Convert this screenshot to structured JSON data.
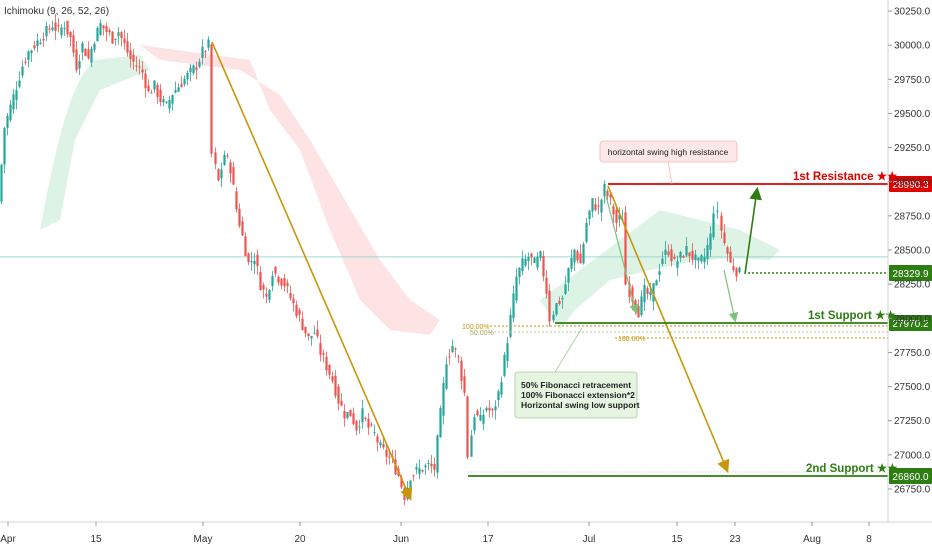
{
  "indicator": {
    "label": "Ichimoku (9, 26, 52, 26)"
  },
  "colors": {
    "up": "#26a69a",
    "down": "#ef5350",
    "resistance": "#e00000",
    "support": "#2e7d12",
    "current": "#26a69a",
    "arrow": "#c8960c",
    "cloud_bull": "#d9f2e3",
    "cloud_bear": "#fde0e0"
  },
  "chart_data": {
    "type": "candlestick",
    "ylim": [
      26600,
      30300
    ],
    "y_ticks": [
      "30250.0",
      "30000.0",
      "29750.0",
      "29500.0",
      "29250.0",
      "29000.0",
      "28750.0",
      "28500.0",
      "28250.0",
      "28000.0",
      "27750.0",
      "27500.0",
      "27250.0",
      "27000.0",
      "26750.0"
    ],
    "x_ticks": [
      "Apr",
      "15",
      "May",
      "20",
      "Jun",
      "17",
      "Jul",
      "15",
      "23",
      "Aug",
      "8"
    ],
    "levels": [
      {
        "name": "1st Resistance ★★",
        "value": "28990.3",
        "kind": "resistance"
      },
      {
        "name": "",
        "value": "28329.9",
        "kind": "current"
      },
      {
        "name": "1st Support ★★",
        "value": "27970.2",
        "kind": "support"
      },
      {
        "name": "2nd Support ★★",
        "value": "26860.0",
        "kind": "support"
      }
    ],
    "fib_labels": [
      "100.00%",
      "50.00%",
      "100.00%"
    ],
    "annotations": {
      "resistance_note": "horizontal swing high resistance",
      "support_note": [
        "50% Fibonacci retracement",
        "100% Fibonacci extension*2",
        "Horizontal swing low support"
      ]
    },
    "price_path": [
      [
        0,
        28850
      ],
      [
        6,
        29400
      ],
      [
        12,
        29550
      ],
      [
        18,
        29700
      ],
      [
        24,
        29850
      ],
      [
        30,
        29950
      ],
      [
        36,
        30000
      ],
      [
        42,
        30050
      ],
      [
        48,
        30100
      ],
      [
        54,
        30150
      ],
      [
        60,
        30100
      ],
      [
        66,
        30150
      ],
      [
        72,
        30050
      ],
      [
        78,
        29850
      ],
      [
        84,
        30000
      ],
      [
        90,
        29900
      ],
      [
        96,
        30050
      ],
      [
        102,
        30150
      ],
      [
        108,
        30100
      ],
      [
        114,
        30050
      ],
      [
        120,
        30100
      ],
      [
        126,
        30000
      ],
      [
        132,
        29900
      ],
      [
        138,
        29850
      ],
      [
        144,
        29800
      ],
      [
        150,
        29650
      ],
      [
        156,
        29700
      ],
      [
        162,
        29600
      ],
      [
        168,
        29550
      ],
      [
        174,
        29650
      ],
      [
        180,
        29700
      ],
      [
        186,
        29750
      ],
      [
        192,
        29800
      ],
      [
        198,
        29850
      ],
      [
        204,
        29950
      ],
      [
        210,
        30000
      ],
      [
        214,
        29200
      ],
      [
        220,
        29000
      ],
      [
        226,
        29200
      ],
      [
        232,
        29100
      ],
      [
        238,
        28800
      ],
      [
        244,
        28600
      ],
      [
        250,
        28400
      ],
      [
        256,
        28450
      ],
      [
        262,
        28250
      ],
      [
        268,
        28150
      ],
      [
        274,
        28350
      ],
      [
        280,
        28300
      ],
      [
        286,
        28250
      ],
      [
        292,
        28150
      ],
      [
        298,
        28050
      ],
      [
        304,
        27950
      ],
      [
        310,
        27850
      ],
      [
        316,
        27900
      ],
      [
        322,
        27750
      ],
      [
        328,
        27650
      ],
      [
        334,
        27550
      ],
      [
        340,
        27400
      ],
      [
        346,
        27300
      ],
      [
        352,
        27300
      ],
      [
        358,
        27200
      ],
      [
        364,
        27300
      ],
      [
        370,
        27200
      ],
      [
        376,
        27150
      ],
      [
        382,
        27050
      ],
      [
        388,
        27000
      ],
      [
        394,
        26950
      ],
      [
        400,
        26850
      ],
      [
        406,
        26700
      ],
      [
        412,
        26850
      ],
      [
        418,
        26880
      ],
      [
        424,
        26900
      ],
      [
        430,
        26920
      ],
      [
        436,
        26900
      ],
      [
        442,
        27300
      ],
      [
        448,
        27700
      ],
      [
        454,
        27800
      ],
      [
        460,
        27700
      ],
      [
        466,
        27450
      ],
      [
        470,
        27000
      ],
      [
        476,
        27300
      ],
      [
        482,
        27250
      ],
      [
        488,
        27350
      ],
      [
        494,
        27300
      ],
      [
        500,
        27450
      ],
      [
        506,
        27700
      ],
      [
        512,
        28000
      ],
      [
        518,
        28300
      ],
      [
        524,
        28400
      ],
      [
        530,
        28450
      ],
      [
        536,
        28400
      ],
      [
        542,
        28450
      ],
      [
        548,
        28200
      ],
      [
        552,
        28000
      ],
      [
        558,
        28100
      ],
      [
        564,
        28150
      ],
      [
        570,
        28350
      ],
      [
        576,
        28500
      ],
      [
        582,
        28400
      ],
      [
        588,
        28700
      ],
      [
        594,
        28850
      ],
      [
        600,
        28800
      ],
      [
        606,
        28950
      ],
      [
        612,
        28850
      ],
      [
        618,
        28700
      ],
      [
        624,
        28750
      ],
      [
        628,
        28250
      ],
      [
        634,
        28150
      ],
      [
        640,
        28050
      ],
      [
        646,
        28200
      ],
      [
        652,
        28150
      ],
      [
        658,
        28300
      ],
      [
        664,
        28450
      ],
      [
        670,
        28500
      ],
      [
        676,
        28400
      ],
      [
        682,
        28450
      ],
      [
        688,
        28500
      ],
      [
        694,
        28450
      ],
      [
        700,
        28400
      ],
      [
        706,
        28450
      ],
      [
        712,
        28600
      ],
      [
        716,
        28800
      ],
      [
        720,
        28750
      ],
      [
        726,
        28550
      ],
      [
        732,
        28400
      ],
      [
        738,
        28350
      ],
      [
        742,
        28330
      ]
    ]
  }
}
